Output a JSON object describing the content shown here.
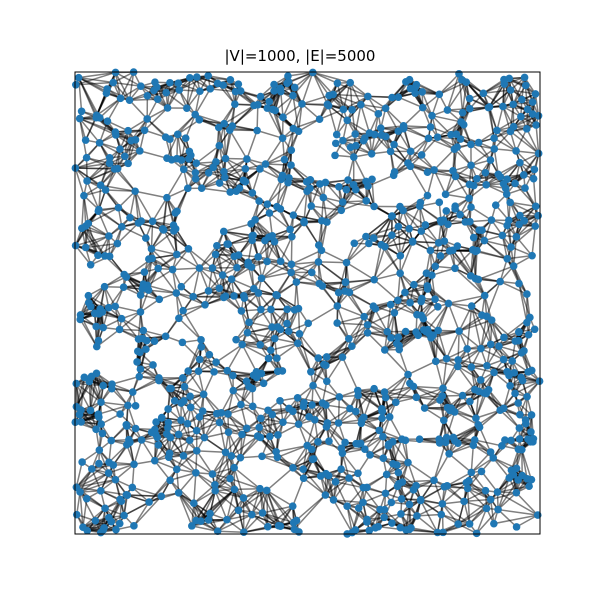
{
  "figure": {
    "title": "|V|=1000, |E|=5000"
  },
  "graph": {
    "vertex_count": 1000,
    "edge_count": 5000,
    "node_color": "#1f77b4",
    "edge_color": "#000000",
    "axes_visible": false,
    "frame_visible": true
  }
}
